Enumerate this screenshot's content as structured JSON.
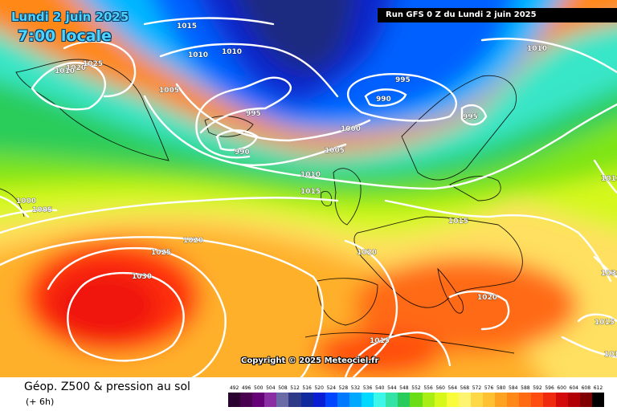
{
  "header": {
    "date": "Lundi 2 juin 2025",
    "time": "7:00 locale",
    "run": "Run GFS 0 Z du Lundi 2 juin 2025"
  },
  "copyright": "Copyright © 2025 Meteociel.fr",
  "footer": {
    "title": "Géop. Z500 & pression au sol",
    "subtitle": "(+ 6h)"
  },
  "legend": {
    "values": [
      "492",
      "496",
      "500",
      "504",
      "508",
      "512",
      "516",
      "520",
      "524",
      "528",
      "532",
      "536",
      "540",
      "544",
      "548",
      "552",
      "556",
      "560",
      "564",
      "568",
      "572",
      "576",
      "580",
      "584",
      "588",
      "592",
      "596",
      "600",
      "604",
      "608",
      "612"
    ],
    "colors": [
      "#2a0030",
      "#4a004e",
      "#660077",
      "#8a2ea4",
      "#6a6aa6",
      "#2e3a88",
      "#102a9e",
      "#0a1fd4",
      "#0046ff",
      "#0078ff",
      "#00a8ff",
      "#00d8ff",
      "#3cf6e8",
      "#33e3a6",
      "#29cc5a",
      "#6add16",
      "#a8ee14",
      "#d6f81a",
      "#f8fc3a",
      "#fff470",
      "#ffd848",
      "#ffc032",
      "#ffa222",
      "#ff8818",
      "#ff6a12",
      "#ff4c10",
      "#f02a0e",
      "#d40a0a",
      "#b00006",
      "#800000",
      "#000000"
    ]
  },
  "isobars": [
    "1015",
    "1010",
    "1010",
    "1020",
    "1025",
    "1010",
    "1005",
    "995",
    "990",
    "995",
    "990",
    "995",
    "1000",
    "1005",
    "1010",
    "1015",
    "1010",
    "1000",
    "1005",
    "1020",
    "1025",
    "1030",
    "1015",
    "1020",
    "1020",
    "1015",
    "1015",
    "1015",
    "1010",
    "1030"
  ]
}
